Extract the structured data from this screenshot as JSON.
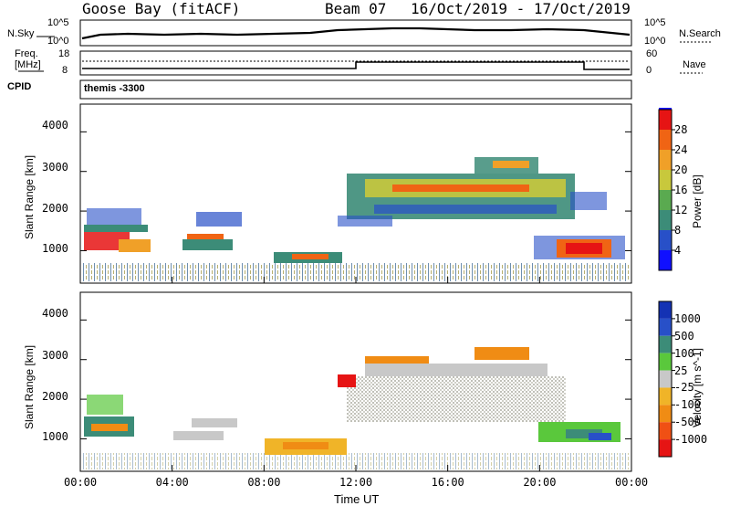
{
  "header": {
    "station": "Goose Bay (fitACF)",
    "beam": "Beam 07",
    "date_range": "16/Oct/2019 - 17/Oct/2019"
  },
  "top_panel": {
    "left_label": "N.Sky",
    "left_ticks": [
      "10^5",
      "10^0"
    ],
    "right_label": "N.Search",
    "right_ticks": [
      "10^5",
      "10^0"
    ]
  },
  "freq_panel": {
    "left_label_1": "Freq.",
    "left_label_2": "[MHz]",
    "left_ticks": [
      "18",
      "8"
    ],
    "right_label": "Nave",
    "right_ticks": [
      "60",
      "0"
    ],
    "cpid_label": "CPID",
    "cpid_value": "themis -3300"
  },
  "colors": {
    "power_scale": [
      "#1010ff",
      "#2850c8",
      "#3c8c78",
      "#5aaa50",
      "#c8c83c",
      "#f0a028",
      "#f06414",
      "#e61414"
    ],
    "velocity_scale": [
      "#e61414",
      "#f05014",
      "#f08c14",
      "#f0b428",
      "#c8c8c8",
      "#5ac83c",
      "#3c8c78",
      "#2850c8",
      "#1432b4"
    ],
    "ground_scatter": "#c0c0b8"
  },
  "chart_data": [
    {
      "type": "heatmap",
      "panel": "power",
      "ylabel": "Slant Range [km]",
      "yticks": [
        "1000",
        "2000",
        "3000",
        "4000"
      ],
      "ylim": [
        180,
        4700
      ],
      "colorbar_label": "Power [dB]",
      "colorbar_ticks": [
        "4",
        "8",
        "12",
        "16",
        "20",
        "24",
        "28"
      ],
      "colorbar_range": [
        0,
        32
      ]
    },
    {
      "type": "heatmap",
      "panel": "velocity",
      "ylabel": "Slant Range [km]",
      "yticks": [
        "1000",
        "2000",
        "3000",
        "4000"
      ],
      "ylim": [
        180,
        4700
      ],
      "xlabel": "Time UT",
      "xticks": [
        "00:00",
        "04:00",
        "08:00",
        "12:00",
        "16:00",
        "20:00",
        "00:00"
      ],
      "xlim": [
        0,
        24
      ],
      "colorbar_label": "Velocity [m s^-1]",
      "colorbar_ticks": [
        "1000",
        "500",
        "100",
        "25",
        "-25",
        "-100",
        "-500",
        "-1000"
      ]
    }
  ]
}
